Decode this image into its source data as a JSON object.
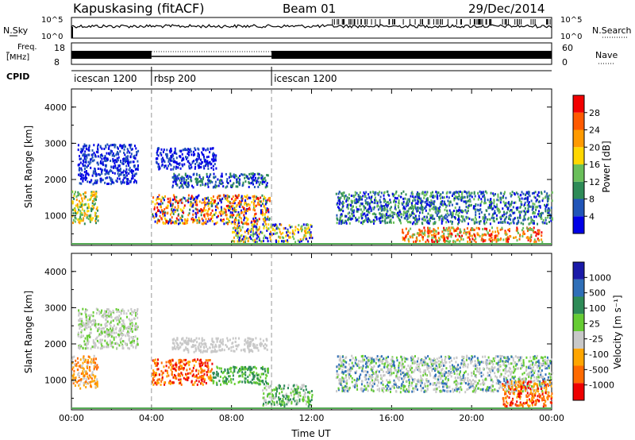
{
  "header": {
    "station": "Kapuskasing (fitACF)",
    "beam": "Beam 01",
    "date": "29/Dec/2014"
  },
  "strip": {
    "nsky_label": "N.Sky",
    "nsearch_label": "N.Search",
    "nsky_ticks": [
      "10^5",
      "10^0"
    ],
    "nsearch_ticks": [
      "10^5",
      "10^0"
    ],
    "freq_label_top": "Freq.",
    "freq_label_bottom": "[MHz]",
    "freq_ticks": [
      "18",
      "8"
    ],
    "nave_label": "Nave",
    "nave_ticks": [
      "60",
      "0"
    ],
    "cpid_label": "CPID",
    "cpid_segments": [
      {
        "name": "icescan 1200",
        "start_hour": 0,
        "end_hour": 4
      },
      {
        "name": "rbsp 200",
        "start_hour": 4,
        "end_hour": 10
      },
      {
        "name": "icescan 1200",
        "start_hour": 10,
        "end_hour": 24
      }
    ]
  },
  "colorbars": {
    "power": {
      "label": "Power [dB]",
      "ticks": [
        "28",
        "24",
        "20",
        "16",
        "12",
        "8",
        "4"
      ],
      "colors": [
        "#0000e6",
        "#2155b8",
        "#2e8b57",
        "#6abf5a",
        "#ffd700",
        "#ff9a00",
        "#ff5a00",
        "#f20000"
      ]
    },
    "velocity": {
      "label": "Velocity [m s⁻¹]",
      "ticks": [
        "1000",
        "500",
        "100",
        "25",
        "-25",
        "-100",
        "-500",
        "-1000"
      ],
      "colors": [
        "#1a1aa8",
        "#2f6fb8",
        "#2e8b57",
        "#66cc33",
        "#c8c8c8",
        "#ffa500",
        "#ff6a00",
        "#ee0000"
      ]
    }
  },
  "chart_data": [
    {
      "type": "heatmap",
      "title": "",
      "xlabel": "",
      "ylabel": "Slant Range [km]",
      "xlim_hours": [
        0,
        24
      ],
      "ylim_km": [
        180,
        4500
      ],
      "yticks": [
        "4000",
        "3000",
        "2000",
        "1000"
      ],
      "parameter": "Power [dB]",
      "scatter_bands": [
        {
          "start_hour": 0,
          "end_hour": 1.3,
          "range_km": [
            800,
            1700
          ],
          "level": "12-20"
        },
        {
          "start_hour": 0.3,
          "end_hour": 3.3,
          "range_km": [
            1900,
            3000
          ],
          "level": "4-8"
        },
        {
          "start_hour": 4.0,
          "end_hour": 9.9,
          "range_km": [
            800,
            1600
          ],
          "level": "20-30"
        },
        {
          "start_hour": 4.2,
          "end_hour": 7.2,
          "range_km": [
            2300,
            2900
          ],
          "level": "4-8"
        },
        {
          "start_hour": 5.0,
          "end_hour": 9.8,
          "range_km": [
            1800,
            2200
          ],
          "level": "4-10"
        },
        {
          "start_hour": 8.0,
          "end_hour": 12.0,
          "range_km": [
            300,
            800
          ],
          "level": "12-20"
        },
        {
          "start_hour": 13.2,
          "end_hour": 24,
          "range_km": [
            800,
            1700
          ],
          "level": "4-12"
        },
        {
          "start_hour": 16.5,
          "end_hour": 23.5,
          "range_km": [
            300,
            700
          ],
          "level": "16-28"
        }
      ]
    },
    {
      "type": "heatmap",
      "title": "",
      "xlabel": "Time UT",
      "ylabel": "Slant Range [km]",
      "xlim_hours": [
        0,
        24
      ],
      "ylim_km": [
        180,
        4500
      ],
      "xticks": [
        "00:00",
        "04:00",
        "08:00",
        "12:00",
        "16:00",
        "20:00",
        "00:00"
      ],
      "yticks": [
        "4000",
        "3000",
        "2000",
        "1000"
      ],
      "parameter": "Velocity [m s⁻¹]",
      "scatter_bands": [
        {
          "start_hour": 0,
          "end_hour": 1.3,
          "range_km": [
            800,
            1700
          ],
          "level": "-100 to -500"
        },
        {
          "start_hour": 0.3,
          "end_hour": 3.3,
          "range_km": [
            1900,
            3000
          ],
          "level": "-25 to 25"
        },
        {
          "start_hour": 4.0,
          "end_hour": 7.0,
          "range_km": [
            900,
            1600
          ],
          "level": "-100 to -1000"
        },
        {
          "start_hour": 7.0,
          "end_hour": 9.8,
          "range_km": [
            900,
            1400
          ],
          "level": "100 to 500"
        },
        {
          "start_hour": 5.0,
          "end_hour": 9.8,
          "range_km": [
            1800,
            2200
          ],
          "level": "-25 to 25"
        },
        {
          "start_hour": 9.5,
          "end_hour": 12.0,
          "range_km": [
            300,
            900
          ],
          "level": "100 to 500"
        },
        {
          "start_hour": 13.2,
          "end_hour": 24,
          "range_km": [
            700,
            1700
          ],
          "level": "-25 to 25"
        },
        {
          "start_hour": 21.5,
          "end_hour": 24,
          "range_km": [
            300,
            1000
          ],
          "level": "-100 to -1000"
        }
      ]
    }
  ]
}
